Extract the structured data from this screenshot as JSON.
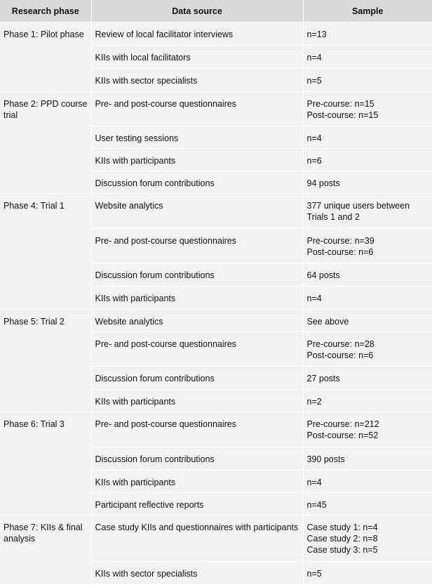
{
  "headers": [
    "Research phase",
    "Data source",
    "Sample"
  ],
  "phases": [
    {
      "phase": "Phase 1: Pilot phase",
      "rows": [
        {
          "source": "Review of local facilitator interviews",
          "sample": "n=13"
        },
        {
          "source": "KIIs with local facilitators",
          "sample": "n=4"
        },
        {
          "source": "KIIs with sector specialists",
          "sample": "n=5"
        }
      ]
    },
    {
      "phase": "Phase 2: PPD course trial",
      "rows": [
        {
          "source": "Pre- and post-course questionnaires",
          "sample": "Pre-course: n=15\nPost-course: n=15"
        },
        {
          "source": "User testing sessions",
          "sample": "n=4"
        },
        {
          "source": "KIIs with participants",
          "sample": "n=6"
        },
        {
          "source": "Discussion forum contributions",
          "sample": "94 posts"
        }
      ]
    },
    {
      "phase": "Phase 4: Trial 1",
      "rows": [
        {
          "source": "Website analytics",
          "sample": "377 unique users between Trials 1 and 2"
        },
        {
          "source": "Pre- and post-course questionnaires",
          "sample": "Pre-course: n=39\nPost-course: n=6"
        },
        {
          "source": "Discussion forum contributions",
          "sample": "64 posts"
        },
        {
          "source": "KIIs with participants",
          "sample": "n=4"
        }
      ]
    },
    {
      "phase": "Phase 5: Trial 2",
      "rows": [
        {
          "source": "Website analytics",
          "sample": "See above"
        },
        {
          "source": "Pre- and post-course questionnaires",
          "sample": "Pre-course: n=28\nPost-course: n=6"
        },
        {
          "source": "Discussion forum contributions",
          "sample": "27 posts"
        },
        {
          "source": "KIIs with participants",
          "sample": "n=2"
        }
      ]
    },
    {
      "phase": "Phase 6: Trial 3",
      "rows": [
        {
          "source": "Pre- and post-course questionnaires",
          "sample": "Pre-course: n=212\nPost-course: n=52"
        },
        {
          "source": "Discussion forum contributions",
          "sample": "390 posts"
        },
        {
          "source": "KIIs with participants",
          "sample": "n=4"
        },
        {
          "source": "Participant reflective reports",
          "sample": "n=45"
        }
      ]
    },
    {
      "phase": "Phase 7: KIIs & final analysis",
      "rows": [
        {
          "source": "Case study KIIs and questionnaires with participants",
          "sample": "Case study 1: n=4\nCase study 2: n=8\nCase study 3: n=5"
        },
        {
          "source": "KIIs with sector specialists",
          "sample": "n=5"
        }
      ]
    }
  ]
}
